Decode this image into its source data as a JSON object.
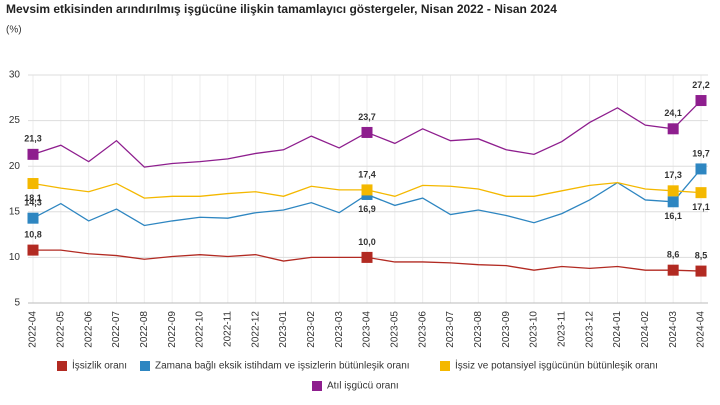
{
  "chart_data": {
    "type": "line",
    "title": "Mevsim etkisinden arındırılmış işgücüne ilişkin tamamlayıcı göstergeler, Nisan 2022 - Nisan 2024",
    "subtitle": "(%)",
    "categories": [
      "2022-04",
      "2022-05",
      "2022-06",
      "2022-07",
      "2022-08",
      "2022-09",
      "2022-10",
      "2022-11",
      "2022-12",
      "2023-01",
      "2023-02",
      "2023-03",
      "2023-04",
      "2023-05",
      "2023-06",
      "2023-07",
      "2023-08",
      "2023-09",
      "2023-10",
      "2023-11",
      "2023-12",
      "2024-01",
      "2024-02",
      "2024-03",
      "2024-04"
    ],
    "series": [
      {
        "name": "İşsizlik oranı",
        "color": "#b22a22",
        "values": [
          10.8,
          10.8,
          10.4,
          10.2,
          9.8,
          10.1,
          10.3,
          10.1,
          10.3,
          9.6,
          10.0,
          10.0,
          10.0,
          9.5,
          9.5,
          9.4,
          9.2,
          9.1,
          8.6,
          9.0,
          8.8,
          9.0,
          8.6,
          8.6,
          8.5
        ],
        "value_labels": [
          "10,8",
          null,
          null,
          null,
          null,
          null,
          null,
          null,
          null,
          null,
          null,
          null,
          "10,0",
          null,
          null,
          null,
          null,
          null,
          null,
          null,
          null,
          null,
          null,
          "8,6",
          "8,5"
        ]
      },
      {
        "name": "Zamana bağlı eksik istihdam ve işsizlerin bütünleşik oranı",
        "color": "#2e86c1",
        "values": [
          14.3,
          15.9,
          14.0,
          15.3,
          13.5,
          14.0,
          14.4,
          14.3,
          14.9,
          15.2,
          16.0,
          14.9,
          16.9,
          15.7,
          16.5,
          14.7,
          15.2,
          14.6,
          13.8,
          14.8,
          16.3,
          18.2,
          16.3,
          16.1,
          19.7
        ],
        "value_labels": [
          "14,3",
          null,
          null,
          null,
          null,
          null,
          null,
          null,
          null,
          null,
          null,
          null,
          "16,9",
          null,
          null,
          null,
          null,
          null,
          null,
          null,
          null,
          null,
          null,
          "16,1",
          "19,7"
        ]
      },
      {
        "name": "İşsiz ve potansiyel işgücünün bütünleşik oranı",
        "color": "#f4b800",
        "values": [
          18.1,
          17.6,
          17.2,
          18.1,
          16.5,
          16.7,
          16.7,
          17.0,
          17.2,
          16.7,
          17.8,
          17.4,
          17.4,
          16.7,
          17.9,
          17.8,
          17.5,
          16.7,
          16.7,
          17.3,
          17.9,
          18.2,
          17.5,
          17.3,
          17.1
        ],
        "value_labels": [
          "18,1",
          null,
          null,
          null,
          null,
          null,
          null,
          null,
          null,
          null,
          null,
          null,
          "17,4",
          null,
          null,
          null,
          null,
          null,
          null,
          null,
          null,
          null,
          null,
          "17,3",
          "17,1"
        ]
      },
      {
        "name": "Atıl işgücü oranı",
        "color": "#8e1e8e",
        "values": [
          21.3,
          22.3,
          20.5,
          22.8,
          19.9,
          20.3,
          20.5,
          20.8,
          21.4,
          21.8,
          23.3,
          22.0,
          23.7,
          22.5,
          24.1,
          22.8,
          23.0,
          21.8,
          21.3,
          22.7,
          24.8,
          26.4,
          24.5,
          24.1,
          27.2
        ],
        "value_labels": [
          "21,3",
          null,
          null,
          null,
          null,
          null,
          null,
          null,
          null,
          null,
          null,
          null,
          "23,7",
          null,
          null,
          null,
          null,
          null,
          null,
          null,
          null,
          null,
          null,
          "24,1",
          "27,2"
        ]
      }
    ],
    "ylim": [
      5,
      30
    ],
    "yticks": [
      5,
      10,
      15,
      20,
      25,
      30
    ],
    "grid": true
  }
}
